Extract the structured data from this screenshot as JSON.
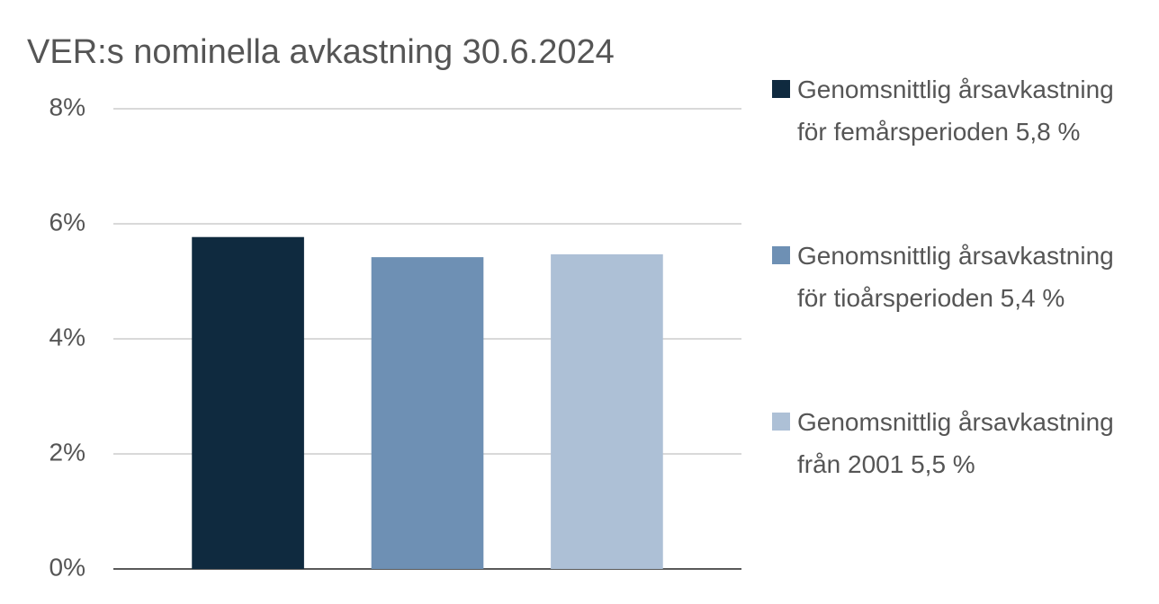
{
  "chart_data": {
    "type": "bar",
    "title": "VER:s nominella avkastning 30.6.2024",
    "categories": [
      null
    ],
    "series": [
      {
        "name": "Genomsnittlig årsavkastning för femårsperioden 5,8 %",
        "color": "#0f2a3f",
        "values": [
          5.77
        ]
      },
      {
        "name": "Genomsnittlig årsavkastning för tioårsperioden 5,4 %",
        "color": "#6e90b4",
        "values": [
          5.42
        ]
      },
      {
        "name": "Genomsnittlig årsavkastning från 2001 5,5 %",
        "color": "#adc0d6",
        "values": [
          5.47
        ]
      }
    ],
    "ylim": [
      0,
      8
    ],
    "yticks": [
      {
        "value": 0,
        "label": "0%"
      },
      {
        "value": 2,
        "label": "2%"
      },
      {
        "value": 4,
        "label": "4%"
      },
      {
        "value": 6,
        "label": "6%"
      },
      {
        "value": 8,
        "label": "8%"
      }
    ],
    "grid": true,
    "legend": "right"
  }
}
